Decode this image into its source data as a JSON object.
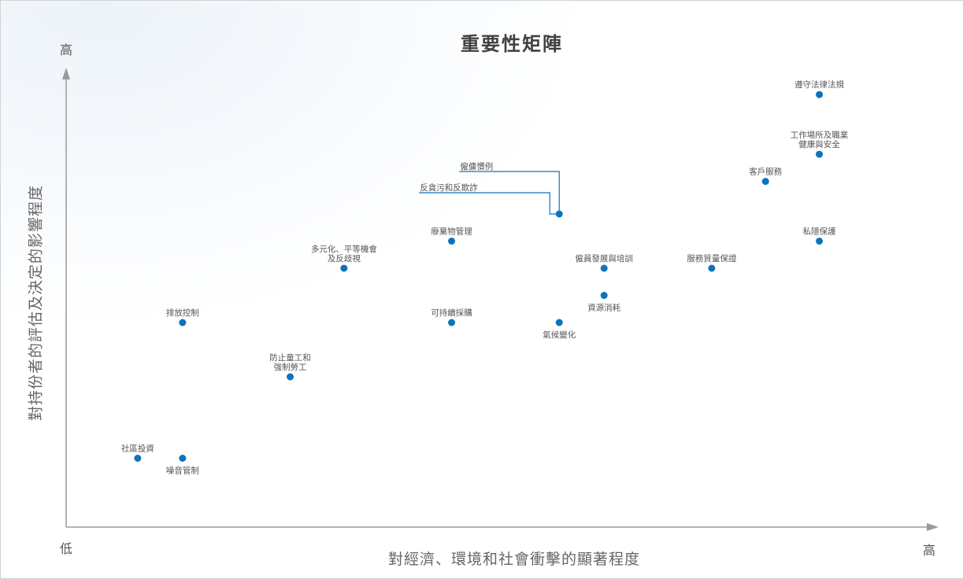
{
  "chart_data": {
    "type": "scatter",
    "title": "重要性矩陣",
    "xlabel": "對經濟、環境和社會衝擊的顯著程度",
    "ylabel": "對持份者的評估及決定的影響程度",
    "x_low_label": "低",
    "x_high_label": "高",
    "y_high_label": "高",
    "xlim": [
      0,
      1
    ],
    "ylim": [
      0,
      1
    ],
    "grid": false,
    "marker_color": "#0a74bd",
    "leader_color": "#0a74bd",
    "points": [
      {
        "label": [
          "遵守法律法規"
        ],
        "x": 0.86,
        "y": 0.92,
        "label_pos": "above"
      },
      {
        "label": [
          "工作場所及職業",
          "健康與安全"
        ],
        "x": 0.86,
        "y": 0.81,
        "label_pos": "above"
      },
      {
        "label": [
          "客戶服務"
        ],
        "x": 0.8,
        "y": 0.76,
        "label_pos": "above"
      },
      {
        "label": [
          "私隱保護"
        ],
        "x": 0.86,
        "y": 0.65,
        "label_pos": "above"
      },
      {
        "label": [
          "服務質量保證"
        ],
        "x": 0.74,
        "y": 0.6,
        "label_pos": "above"
      },
      {
        "label": [
          "僱員發展與培訓"
        ],
        "x": 0.62,
        "y": 0.6,
        "label_pos": "above"
      },
      {
        "label": [
          "資源消耗"
        ],
        "x": 0.62,
        "y": 0.55,
        "label_pos": "below"
      },
      {
        "label": [
          "氣候變化"
        ],
        "x": 0.57,
        "y": 0.5,
        "label_pos": "below"
      },
      {
        "label": [
          "可持續採購"
        ],
        "x": 0.45,
        "y": 0.5,
        "label_pos": "above"
      },
      {
        "label": [
          "廢棄物管理"
        ],
        "x": 0.45,
        "y": 0.65,
        "label_pos": "above"
      },
      {
        "label": [
          "多元化、平等機會",
          "及反歧視"
        ],
        "x": 0.33,
        "y": 0.6,
        "label_pos": "above"
      },
      {
        "label": [
          "排放控制"
        ],
        "x": 0.15,
        "y": 0.5,
        "label_pos": "above"
      },
      {
        "label": [
          "防止童工和",
          "強制勞工"
        ],
        "x": 0.27,
        "y": 0.4,
        "label_pos": "above"
      },
      {
        "label": [
          "社區投資"
        ],
        "x": 0.1,
        "y": 0.25,
        "label_pos": "above"
      },
      {
        "label": [
          "噪音管制"
        ],
        "x": 0.15,
        "y": 0.25,
        "label_pos": "below"
      },
      {
        "label": [
          "僱傭慣例",
          "反貪污和反欺詐"
        ],
        "x": 0.57,
        "y": 0.7,
        "label_pos": "leader"
      }
    ]
  }
}
